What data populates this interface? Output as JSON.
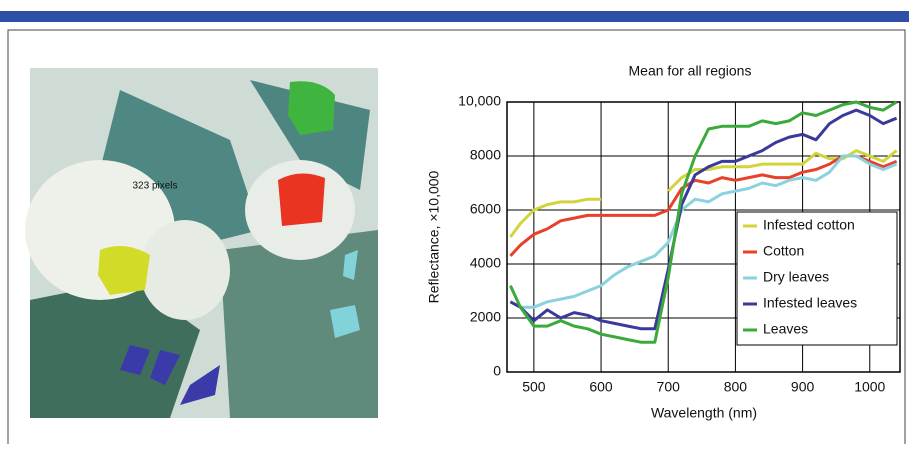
{
  "image": {
    "label": "323 pixels"
  },
  "chart_data": {
    "type": "line",
    "title": "Mean for all regions",
    "x_label": "Wavelength (nm)",
    "y_label": "Reflectance, ×10,000",
    "x": [
      465,
      480,
      500,
      520,
      540,
      560,
      580,
      600,
      620,
      640,
      660,
      680,
      700,
      720,
      740,
      760,
      780,
      800,
      820,
      840,
      860,
      880,
      900,
      920,
      940,
      960,
      980,
      1000,
      1020,
      1040
    ],
    "series": [
      {
        "name": "Infested cotton",
        "color": "#d2d43c",
        "values": [
          5000,
          5500,
          6000,
          6200,
          6300,
          6300,
          6400,
          6400,
          null,
          null,
          null,
          null,
          6700,
          7200,
          7500,
          7500,
          7600,
          7600,
          7600,
          7700,
          7700,
          7700,
          7700,
          8100,
          7900,
          7900,
          8200,
          8000,
          7800,
          8200
        ]
      },
      {
        "name": "Cotton",
        "color": "#e8402a",
        "values": [
          4300,
          4700,
          5100,
          5300,
          5600,
          5700,
          5800,
          5800,
          5800,
          5800,
          5800,
          5800,
          6000,
          6800,
          7100,
          7000,
          7200,
          7100,
          7200,
          7300,
          7200,
          7200,
          7400,
          7500,
          7700,
          8000,
          8000,
          7800,
          7600,
          7800
        ]
      },
      {
        "name": "Dry leaves",
        "color": "#8ad2de",
        "values": [
          2600,
          2400,
          2400,
          2600,
          2700,
          2800,
          3000,
          3200,
          3600,
          3900,
          4100,
          4300,
          4800,
          6000,
          6400,
          6300,
          6600,
          6700,
          6800,
          7000,
          6900,
          7100,
          7200,
          7100,
          7400,
          8000,
          8000,
          7700,
          7500,
          7700
        ]
      },
      {
        "name": "Infested leaves",
        "color": "#3a3a9c",
        "values": [
          2600,
          2400,
          1900,
          2300,
          2000,
          2200,
          2100,
          1900,
          1800,
          1700,
          1600,
          1600,
          3800,
          6200,
          7300,
          7600,
          7800,
          7800,
          8000,
          8200,
          8500,
          8700,
          8800,
          8600,
          9200,
          9500,
          9700,
          9500,
          9200,
          9400
        ]
      },
      {
        "name": "Leaves",
        "color": "#3aaa3a",
        "values": [
          3200,
          2400,
          1700,
          1700,
          1900,
          1700,
          1600,
          1400,
          1300,
          1200,
          1100,
          1100,
          3500,
          6600,
          8000,
          9000,
          9100,
          9100,
          9100,
          9300,
          9200,
          9300,
          9600,
          9500,
          9700,
          9900,
          10000,
          9800,
          9700,
          10000
        ]
      }
    ],
    "xlim": [
      460,
      1045
    ],
    "ylim": [
      0,
      10000
    ],
    "xticks": [
      500,
      600,
      700,
      800,
      900,
      1000
    ],
    "yticks": [
      0,
      2000,
      4000,
      6000,
      8000,
      {
        "value": 10000,
        "label": "10,000"
      }
    ],
    "grid": true,
    "legend": "lower right"
  }
}
